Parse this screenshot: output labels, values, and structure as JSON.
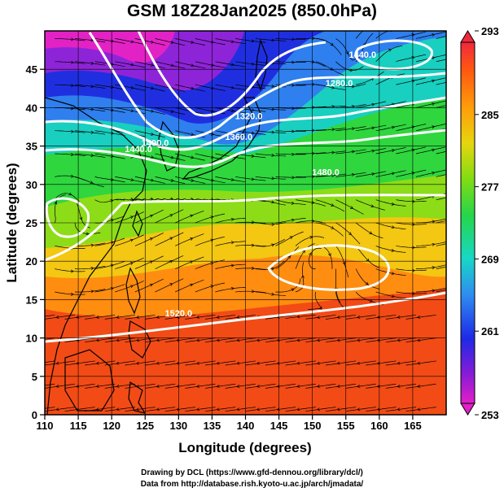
{
  "title": "GSM 18Z28Jan2025 (850.0hPa)",
  "xlabel": "Longitude (degrees)",
  "ylabel": "Latitude  (degrees)",
  "x_ticks": [
    "110",
    "115",
    "120",
    "125",
    "130",
    "135",
    "140",
    "145",
    "150",
    "155",
    "160",
    "165"
  ],
  "y_ticks": [
    "0",
    "5",
    "10",
    "15",
    "20",
    "25",
    "30",
    "35",
    "40",
    "45"
  ],
  "colorbar_ticks": [
    "253",
    "261",
    "269",
    "277",
    "285",
    "293"
  ],
  "contour_labels": [
    {
      "text": "1440.0",
      "lon": 157.5,
      "lat": 46.5
    },
    {
      "text": "1280.0",
      "lon": 154.0,
      "lat": 42.8
    },
    {
      "text": "1320.0",
      "lon": 140.5,
      "lat": 38.5
    },
    {
      "text": "1360.0",
      "lon": 139.0,
      "lat": 35.8
    },
    {
      "text": "1400.0",
      "lon": 126.5,
      "lat": 35.0
    },
    {
      "text": "1440.0",
      "lon": 124.0,
      "lat": 34.2
    },
    {
      "text": "1480.0",
      "lon": 152.0,
      "lat": 31.2
    },
    {
      "text": "1520.0",
      "lon": 130.0,
      "lat": 12.8
    }
  ],
  "credits": [
    "Drawing by DCL (https://www.gfd-dennou.org/library/dcl/)",
    "Data from http://database.rish.kyoto-u.ac.jp/arch/jmadata/"
  ],
  "colors": {
    "background": "#ffffff",
    "contour": "#ffffff",
    "streamline": "#000000",
    "coast": "#000000"
  }
}
